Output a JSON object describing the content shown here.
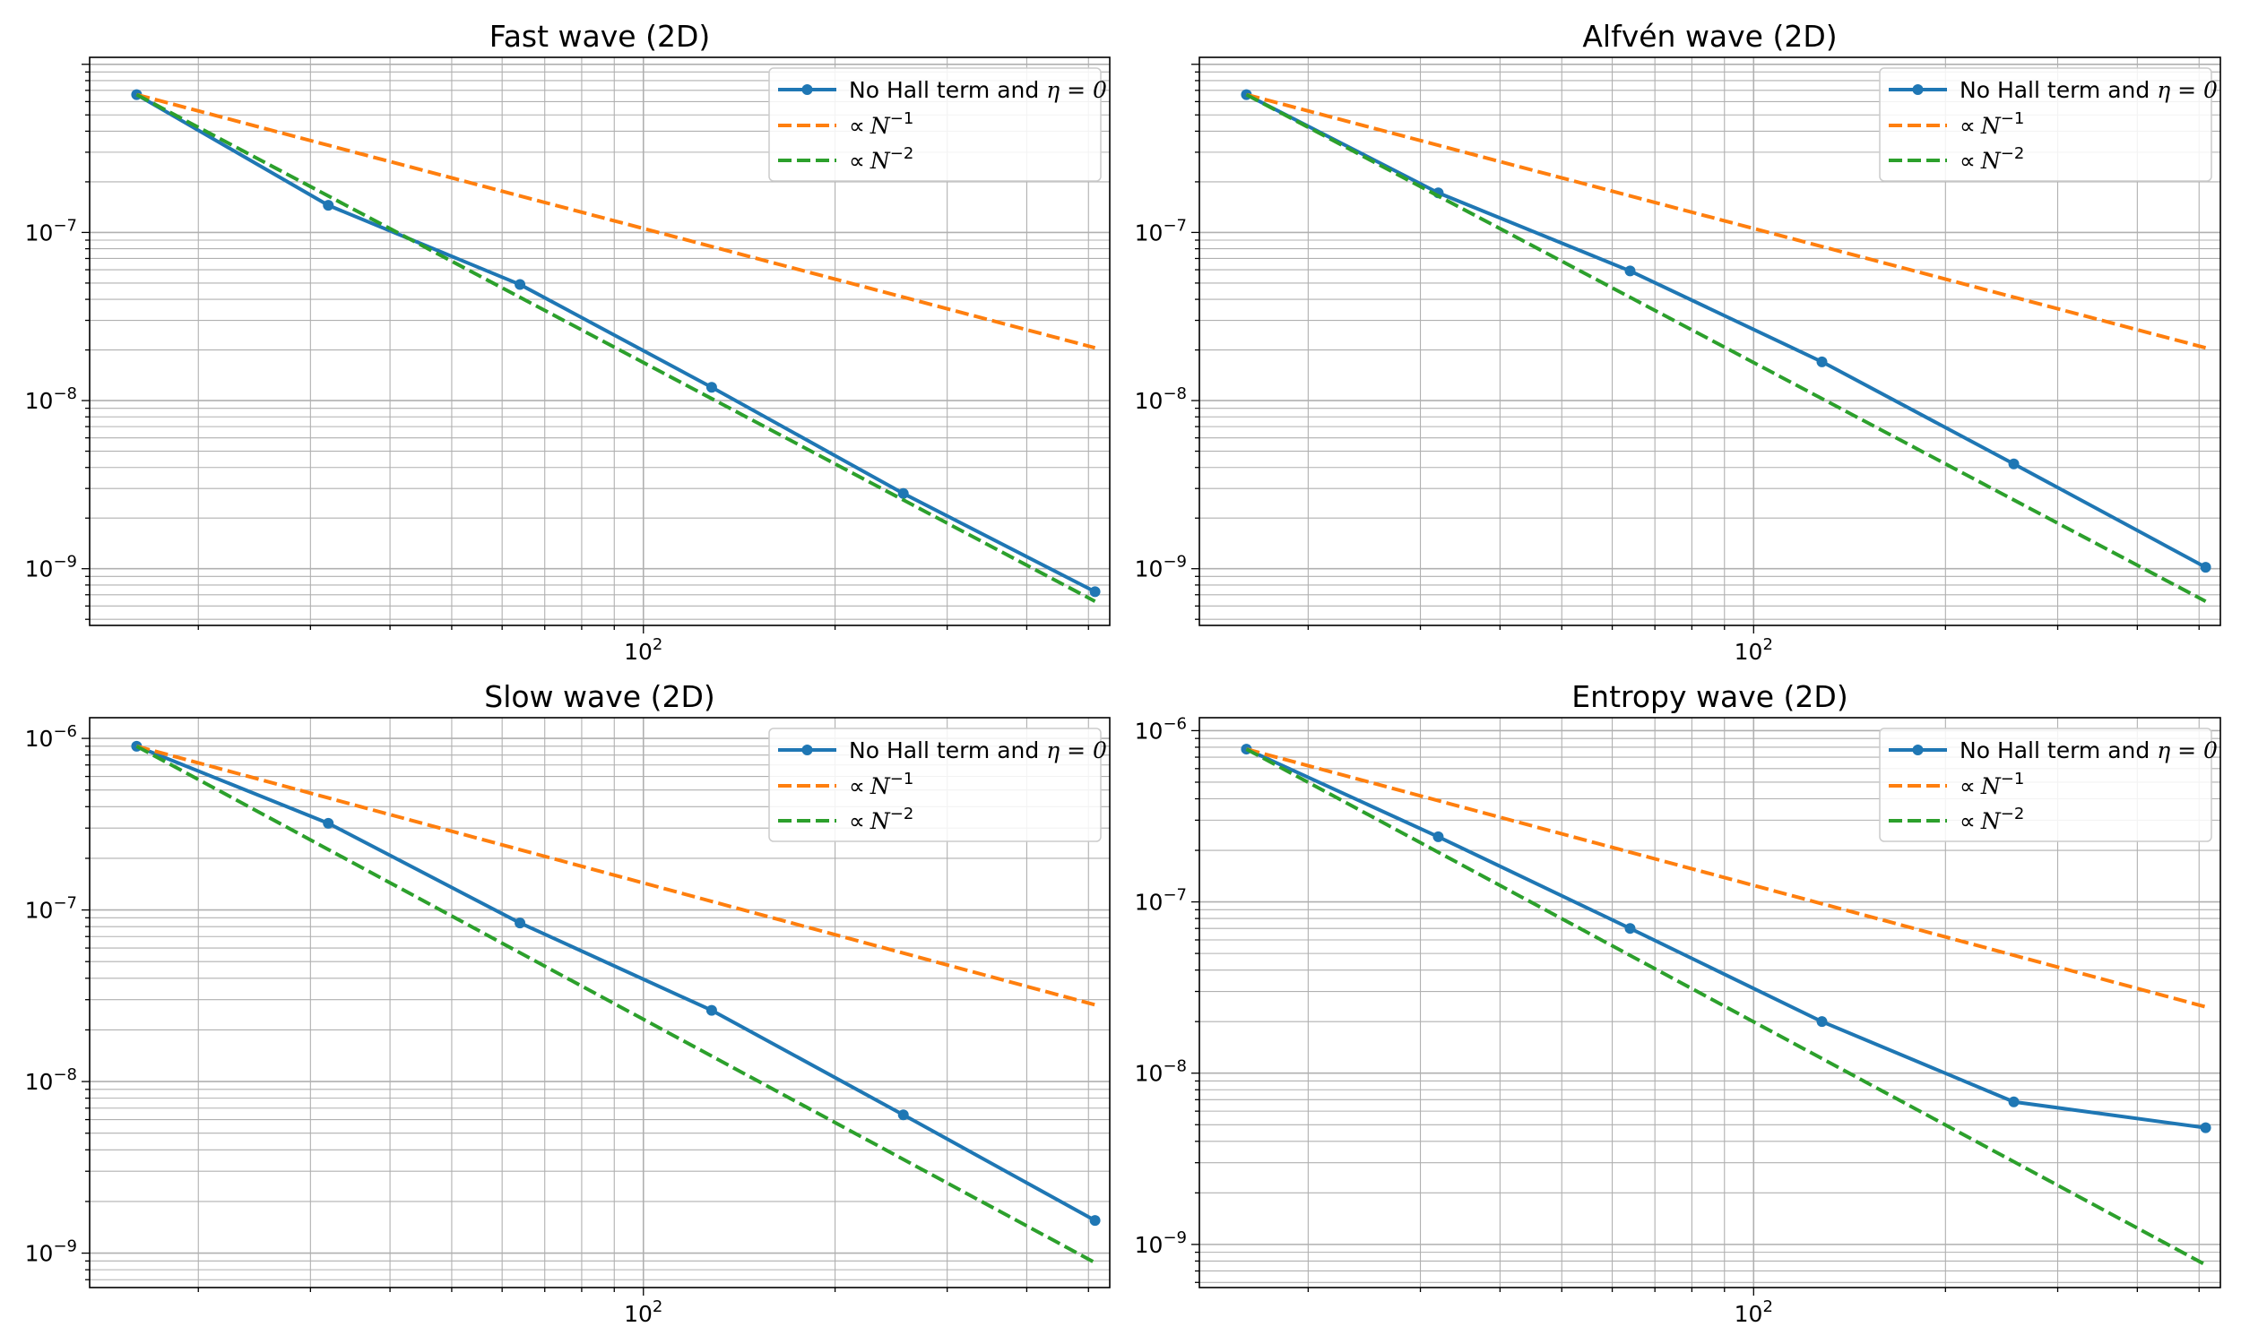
{
  "figure": {
    "legend_labels": {
      "measured_prefix": "No Hall term and ",
      "measured_math": "η = 0",
      "prop_symbol": "∝",
      "prop_var": "N",
      "order1_exp": "−1",
      "order2_exp": "−2"
    },
    "colors": {
      "measured": "#1f77b4",
      "order1": "#ff7f0e",
      "order2": "#2ca02c",
      "grid": "#b0b0b0",
      "frame": "#000000"
    }
  },
  "chart_data": [
    {
      "type": "line",
      "title": "Fast wave (2D)",
      "xscale": "log",
      "yscale": "log",
      "xlim": [
        13.5,
        540
      ],
      "ylim": [
        4.6e-10,
        1.1e-06
      ],
      "xticks": [
        {
          "value": 100,
          "base": "10",
          "exp": "2"
        }
      ],
      "yticks": [
        {
          "value": 1e-09,
          "base": "10",
          "exp": "−9"
        },
        {
          "value": 1e-08,
          "base": "10",
          "exp": "−8"
        },
        {
          "value": 1e-07,
          "base": "10",
          "exp": "−7"
        }
      ],
      "legend_position": "upper right",
      "grid": true,
      "series": [
        {
          "name": "No Hall term and η = 0",
          "style": "solid-marker",
          "x": [
            16,
            32,
            64,
            128,
            256,
            512
          ],
          "y": [
            6.6e-07,
            1.45e-07,
            4.9e-08,
            1.2e-08,
            2.8e-09,
            7.3e-10
          ]
        },
        {
          "name": "∝ N^−1",
          "style": "dashed",
          "x": [
            16,
            512
          ],
          "y": [
            6.6e-07,
            2.06e-08
          ]
        },
        {
          "name": "∝ N^−2",
          "style": "dashed",
          "x": [
            16,
            512
          ],
          "y": [
            6.6e-07,
            6.4e-10
          ]
        }
      ]
    },
    {
      "type": "line",
      "title": "Alfvén wave (2D)",
      "xscale": "log",
      "yscale": "log",
      "xlim": [
        13.5,
        540
      ],
      "ylim": [
        4.6e-10,
        1.1e-06
      ],
      "xticks": [
        {
          "value": 100,
          "base": "10",
          "exp": "2"
        }
      ],
      "yticks": [
        {
          "value": 1e-09,
          "base": "10",
          "exp": "−9"
        },
        {
          "value": 1e-08,
          "base": "10",
          "exp": "−8"
        },
        {
          "value": 1e-07,
          "base": "10",
          "exp": "−7"
        }
      ],
      "legend_position": "upper right",
      "grid": true,
      "series": [
        {
          "name": "No Hall term and η = 0",
          "style": "solid-marker",
          "x": [
            16,
            32,
            64,
            128,
            256,
            512
          ],
          "y": [
            6.6e-07,
            1.72e-07,
            5.9e-08,
            1.7e-08,
            4.2e-09,
            1.02e-09
          ]
        },
        {
          "name": "∝ N^−1",
          "style": "dashed",
          "x": [
            16,
            512
          ],
          "y": [
            6.6e-07,
            2.06e-08
          ]
        },
        {
          "name": "∝ N^−2",
          "style": "dashed",
          "x": [
            16,
            512
          ],
          "y": [
            6.6e-07,
            6.4e-10
          ]
        }
      ]
    },
    {
      "type": "line",
      "title": "Slow wave (2D)",
      "xscale": "log",
      "yscale": "log",
      "xlim": [
        13.5,
        540
      ],
      "ylim": [
        6.3e-10,
        1.32e-06
      ],
      "xticks": [
        {
          "value": 100,
          "base": "10",
          "exp": "2"
        }
      ],
      "yticks": [
        {
          "value": 1e-09,
          "base": "10",
          "exp": "−9"
        },
        {
          "value": 1e-08,
          "base": "10",
          "exp": "−8"
        },
        {
          "value": 1e-07,
          "base": "10",
          "exp": "−7"
        },
        {
          "value": 1e-06,
          "base": "10",
          "exp": "−6"
        }
      ],
      "legend_position": "upper right",
      "grid": true,
      "series": [
        {
          "name": "No Hall term and η = 0",
          "style": "solid-marker",
          "x": [
            16,
            32,
            64,
            128,
            256,
            512
          ],
          "y": [
            9e-07,
            3.2e-07,
            8.4e-08,
            2.6e-08,
            6.4e-09,
            1.55e-09
          ]
        },
        {
          "name": "∝ N^−1",
          "style": "dashed",
          "x": [
            16,
            512
          ],
          "y": [
            9e-07,
            2.8e-08
          ]
        },
        {
          "name": "∝ N^−2",
          "style": "dashed",
          "x": [
            16,
            512
          ],
          "y": [
            9e-07,
            8.8e-10
          ]
        }
      ]
    },
    {
      "type": "line",
      "title": "Entropy wave (2D)",
      "xscale": "log",
      "yscale": "log",
      "xlim": [
        13.5,
        540
      ],
      "ylim": [
        5.6e-10,
        1.19e-06
      ],
      "xticks": [
        {
          "value": 100,
          "base": "10",
          "exp": "2"
        }
      ],
      "yticks": [
        {
          "value": 1e-09,
          "base": "10",
          "exp": "−9"
        },
        {
          "value": 1e-08,
          "base": "10",
          "exp": "−8"
        },
        {
          "value": 1e-07,
          "base": "10",
          "exp": "−7"
        },
        {
          "value": 1e-06,
          "base": "10",
          "exp": "−6"
        }
      ],
      "legend_position": "upper right",
      "grid": true,
      "series": [
        {
          "name": "No Hall term and η = 0",
          "style": "solid-marker",
          "x": [
            16,
            32,
            64,
            128,
            256,
            512
          ],
          "y": [
            7.8e-07,
            2.4e-07,
            7e-08,
            2e-08,
            6.8e-09,
            4.8e-09
          ]
        },
        {
          "name": "∝ N^−1",
          "style": "dashed",
          "x": [
            16,
            512
          ],
          "y": [
            7.8e-07,
            2.44e-08
          ]
        },
        {
          "name": "∝ N^−2",
          "style": "dashed",
          "x": [
            16,
            512
          ],
          "y": [
            7.8e-07,
            7.6e-10
          ]
        }
      ]
    }
  ]
}
